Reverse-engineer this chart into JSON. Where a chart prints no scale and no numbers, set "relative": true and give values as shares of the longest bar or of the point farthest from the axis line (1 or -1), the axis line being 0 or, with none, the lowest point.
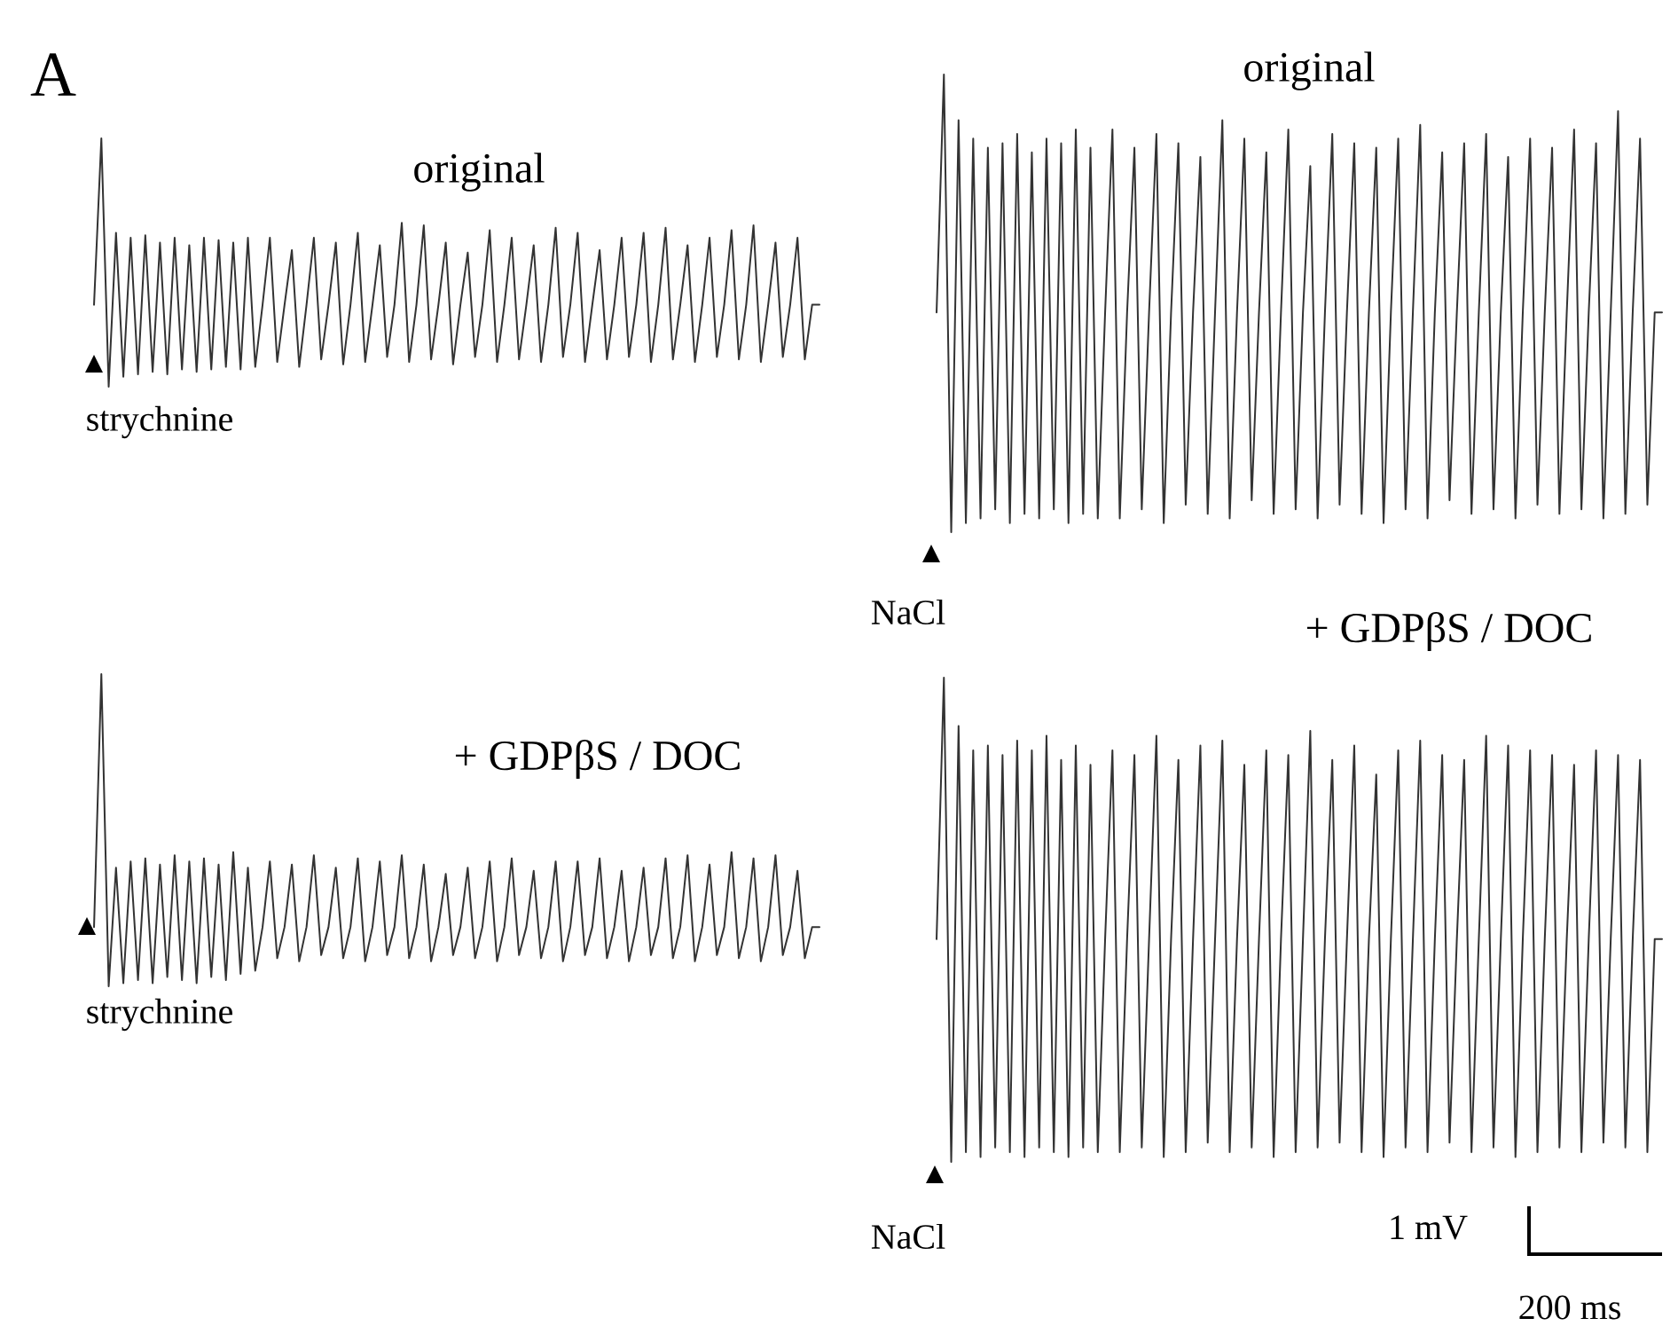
{
  "chart_data": [
    {
      "type": "line",
      "relative": true,
      "title": "original",
      "color": "#333333",
      "marker": "none",
      "line_style": "solid",
      "annotations": [
        "A",
        "strychnine"
      ],
      "categories": [
        null,
        null,
        null,
        null,
        null,
        null,
        null,
        null,
        null,
        null,
        null,
        null,
        null,
        null,
        null,
        null,
        null,
        null,
        null,
        null,
        null,
        null,
        null,
        null,
        null,
        null,
        null,
        null,
        null,
        null,
        null,
        null,
        null,
        null,
        null,
        null,
        null,
        null,
        null,
        null,
        null,
        null,
        null,
        null,
        null,
        null,
        null,
        null,
        null,
        null,
        null,
        null,
        null,
        null,
        null,
        null,
        null,
        null,
        null,
        null,
        null,
        null,
        null,
        null,
        null,
        null,
        null,
        null,
        null,
        null,
        null,
        null,
        null,
        null,
        null,
        null,
        null,
        null,
        null,
        null,
        null,
        null,
        null,
        null,
        null,
        null,
        null,
        null,
        null,
        null,
        null,
        null,
        null,
        null,
        null,
        null,
        null,
        null,
        null,
        null
      ],
      "values": [
        0.33,
        1.0,
        0.0,
        0.62,
        0.04,
        0.6,
        0.05,
        0.61,
        0.06,
        0.58,
        0.05,
        0.6,
        0.07,
        0.57,
        0.06,
        0.6,
        0.07,
        0.59,
        0.08,
        0.58,
        0.07,
        0.6,
        0.08,
        0.33,
        0.6,
        0.1,
        0.33,
        0.55,
        0.08,
        0.33,
        0.6,
        0.11,
        0.33,
        0.58,
        0.09,
        0.33,
        0.62,
        0.1,
        0.33,
        0.57,
        0.12,
        0.33,
        0.66,
        0.1,
        0.33,
        0.65,
        0.11,
        0.33,
        0.58,
        0.09,
        0.33,
        0.54,
        0.12,
        0.33,
        0.63,
        0.1,
        0.33,
        0.6,
        0.11,
        0.33,
        0.57,
        0.1,
        0.33,
        0.64,
        0.12,
        0.33,
        0.62,
        0.1,
        0.33,
        0.55,
        0.11,
        0.33,
        0.6,
        0.12,
        0.33,
        0.62,
        0.1,
        0.33,
        0.64,
        0.11,
        0.33,
        0.57,
        0.1,
        0.33,
        0.6,
        0.12,
        0.33,
        0.63,
        0.11,
        0.33,
        0.65,
        0.1,
        0.33,
        0.58,
        0.12,
        0.33,
        0.6,
        0.11,
        0.33,
        0.33
      ]
    },
    {
      "type": "line",
      "relative": true,
      "title": "original",
      "color": "#333333",
      "marker": "none",
      "line_style": "solid",
      "annotations": [
        "NaCl"
      ],
      "categories": [
        null,
        null,
        null,
        null,
        null,
        null,
        null,
        null,
        null,
        null,
        null,
        null,
        null,
        null,
        null,
        null,
        null,
        null,
        null,
        null,
        null,
        null,
        null,
        null,
        null,
        null,
        null,
        null,
        null,
        null,
        null,
        null,
        null,
        null,
        null,
        null,
        null,
        null,
        null,
        null,
        null,
        null,
        null,
        null,
        null,
        null,
        null,
        null,
        null,
        null,
        null,
        null,
        null,
        null,
        null,
        null,
        null,
        null,
        null,
        null,
        null,
        null,
        null,
        null,
        null,
        null,
        null,
        null,
        null,
        null,
        null,
        null,
        null,
        null,
        null,
        null,
        null,
        null,
        null,
        null,
        null,
        null,
        null,
        null,
        null,
        null,
        null,
        null,
        null,
        null,
        null,
        null,
        null,
        null,
        null,
        null,
        null,
        null,
        null,
        null
      ],
      "values": [
        0.48,
        1.0,
        0.0,
        0.9,
        0.02,
        0.86,
        0.03,
        0.84,
        0.05,
        0.85,
        0.02,
        0.87,
        0.04,
        0.83,
        0.03,
        0.86,
        0.05,
        0.85,
        0.02,
        0.88,
        0.04,
        0.84,
        0.03,
        0.48,
        0.88,
        0.03,
        0.48,
        0.84,
        0.05,
        0.48,
        0.87,
        0.02,
        0.48,
        0.85,
        0.06,
        0.48,
        0.82,
        0.04,
        0.48,
        0.9,
        0.03,
        0.48,
        0.86,
        0.07,
        0.48,
        0.83,
        0.04,
        0.48,
        0.88,
        0.05,
        0.48,
        0.8,
        0.03,
        0.48,
        0.87,
        0.06,
        0.48,
        0.85,
        0.04,
        0.48,
        0.84,
        0.02,
        0.48,
        0.86,
        0.05,
        0.48,
        0.89,
        0.03,
        0.48,
        0.83,
        0.07,
        0.48,
        0.85,
        0.04,
        0.48,
        0.87,
        0.05,
        0.48,
        0.82,
        0.03,
        0.48,
        0.86,
        0.06,
        0.48,
        0.84,
        0.04,
        0.48,
        0.88,
        0.05,
        0.48,
        0.85,
        0.03,
        0.48,
        0.92,
        0.04,
        0.48,
        0.86,
        0.06,
        0.48,
        0.48
      ]
    },
    {
      "type": "line",
      "relative": true,
      "title": "+ GDPβS / DOC",
      "color": "#333333",
      "marker": "none",
      "line_style": "solid",
      "annotations": [
        "strychnine"
      ],
      "categories": [
        null,
        null,
        null,
        null,
        null,
        null,
        null,
        null,
        null,
        null,
        null,
        null,
        null,
        null,
        null,
        null,
        null,
        null,
        null,
        null,
        null,
        null,
        null,
        null,
        null,
        null,
        null,
        null,
        null,
        null,
        null,
        null,
        null,
        null,
        null,
        null,
        null,
        null,
        null,
        null,
        null,
        null,
        null,
        null,
        null,
        null,
        null,
        null,
        null,
        null,
        null,
        null,
        null,
        null,
        null,
        null,
        null,
        null,
        null,
        null,
        null,
        null,
        null,
        null,
        null,
        null,
        null,
        null,
        null,
        null,
        null,
        null,
        null,
        null,
        null,
        null,
        null,
        null,
        null,
        null,
        null,
        null,
        null,
        null,
        null,
        null,
        null,
        null,
        null,
        null,
        null,
        null,
        null,
        null,
        null,
        null,
        null,
        null,
        null,
        null
      ],
      "values": [
        0.19,
        1.0,
        0.0,
        0.38,
        0.01,
        0.4,
        0.02,
        0.41,
        0.01,
        0.39,
        0.03,
        0.42,
        0.02,
        0.4,
        0.01,
        0.41,
        0.03,
        0.39,
        0.02,
        0.43,
        0.04,
        0.38,
        0.05,
        0.19,
        0.4,
        0.09,
        0.19,
        0.39,
        0.08,
        0.19,
        0.42,
        0.1,
        0.19,
        0.38,
        0.09,
        0.19,
        0.41,
        0.08,
        0.19,
        0.4,
        0.1,
        0.19,
        0.42,
        0.09,
        0.19,
        0.39,
        0.08,
        0.19,
        0.36,
        0.1,
        0.19,
        0.38,
        0.09,
        0.19,
        0.4,
        0.08,
        0.19,
        0.41,
        0.1,
        0.19,
        0.37,
        0.09,
        0.19,
        0.4,
        0.08,
        0.19,
        0.4,
        0.1,
        0.19,
        0.41,
        0.09,
        0.19,
        0.37,
        0.08,
        0.19,
        0.38,
        0.1,
        0.19,
        0.41,
        0.09,
        0.19,
        0.42,
        0.08,
        0.19,
        0.39,
        0.1,
        0.19,
        0.43,
        0.09,
        0.19,
        0.41,
        0.08,
        0.19,
        0.42,
        0.1,
        0.19,
        0.37,
        0.09,
        0.19,
        0.19
      ]
    },
    {
      "type": "line",
      "relative": true,
      "title": "+ GDPβS / DOC",
      "color": "#333333",
      "marker": "none",
      "line_style": "solid",
      "annotations": [
        "NaCl",
        "1 mV",
        "200 ms"
      ],
      "categories": [
        null,
        null,
        null,
        null,
        null,
        null,
        null,
        null,
        null,
        null,
        null,
        null,
        null,
        null,
        null,
        null,
        null,
        null,
        null,
        null,
        null,
        null,
        null,
        null,
        null,
        null,
        null,
        null,
        null,
        null,
        null,
        null,
        null,
        null,
        null,
        null,
        null,
        null,
        null,
        null,
        null,
        null,
        null,
        null,
        null,
        null,
        null,
        null,
        null,
        null,
        null,
        null,
        null,
        null,
        null,
        null,
        null,
        null,
        null,
        null,
        null,
        null,
        null,
        null,
        null,
        null,
        null,
        null,
        null,
        null,
        null,
        null,
        null,
        null,
        null,
        null,
        null,
        null,
        null,
        null,
        null,
        null,
        null,
        null,
        null,
        null,
        null,
        null,
        null,
        null,
        null,
        null,
        null,
        null,
        null,
        null,
        null,
        null,
        null,
        null
      ],
      "values": [
        0.46,
        1.0,
        0.0,
        0.9,
        0.02,
        0.85,
        0.01,
        0.86,
        0.03,
        0.84,
        0.02,
        0.87,
        0.01,
        0.85,
        0.03,
        0.88,
        0.02,
        0.83,
        0.01,
        0.86,
        0.03,
        0.82,
        0.02,
        0.46,
        0.85,
        0.02,
        0.46,
        0.84,
        0.03,
        0.46,
        0.88,
        0.01,
        0.46,
        0.83,
        0.02,
        0.46,
        0.86,
        0.04,
        0.46,
        0.87,
        0.02,
        0.46,
        0.82,
        0.03,
        0.46,
        0.85,
        0.01,
        0.46,
        0.84,
        0.02,
        0.46,
        0.89,
        0.03,
        0.46,
        0.83,
        0.04,
        0.46,
        0.86,
        0.02,
        0.46,
        0.8,
        0.01,
        0.46,
        0.85,
        0.03,
        0.46,
        0.87,
        0.02,
        0.46,
        0.84,
        0.04,
        0.46,
        0.83,
        0.02,
        0.46,
        0.88,
        0.03,
        0.46,
        0.86,
        0.01,
        0.46,
        0.85,
        0.02,
        0.46,
        0.84,
        0.03,
        0.46,
        0.82,
        0.02,
        0.46,
        0.85,
        0.04,
        0.46,
        0.84,
        0.03,
        0.46,
        0.83,
        0.02,
        0.46,
        0.46
      ]
    }
  ]
}
